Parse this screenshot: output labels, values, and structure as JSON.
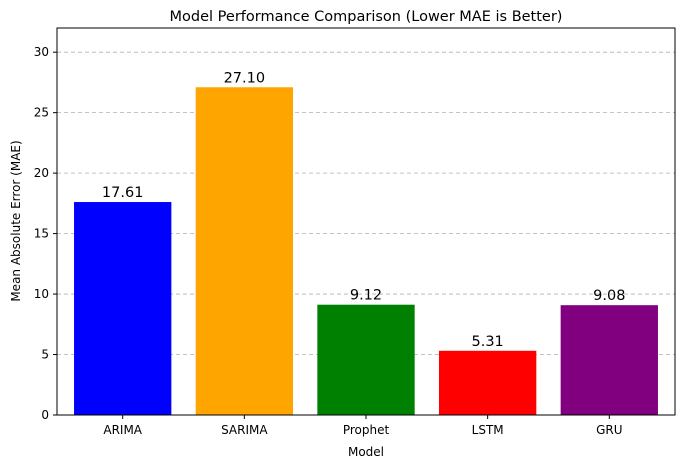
{
  "chart_data": {
    "type": "bar",
    "title": "Model Performance Comparison (Lower MAE is Better)",
    "xlabel": "Model",
    "ylabel": "Mean Absolute Error (MAE)",
    "categories": [
      "ARIMA",
      "SARIMA",
      "Prophet",
      "LSTM",
      "GRU"
    ],
    "values": [
      17.61,
      27.1,
      9.12,
      5.31,
      9.08
    ],
    "value_labels": [
      "17.61",
      "27.10",
      "9.12",
      "5.31",
      "9.08"
    ],
    "colors": [
      "#0000ff",
      "#ffa500",
      "#008000",
      "#ff0000",
      "#800080"
    ],
    "ylim": [
      0,
      32
    ],
    "yticks": [
      0,
      5,
      10,
      15,
      20,
      25,
      30
    ],
    "grid": "y-dashed",
    "legend": "none"
  }
}
